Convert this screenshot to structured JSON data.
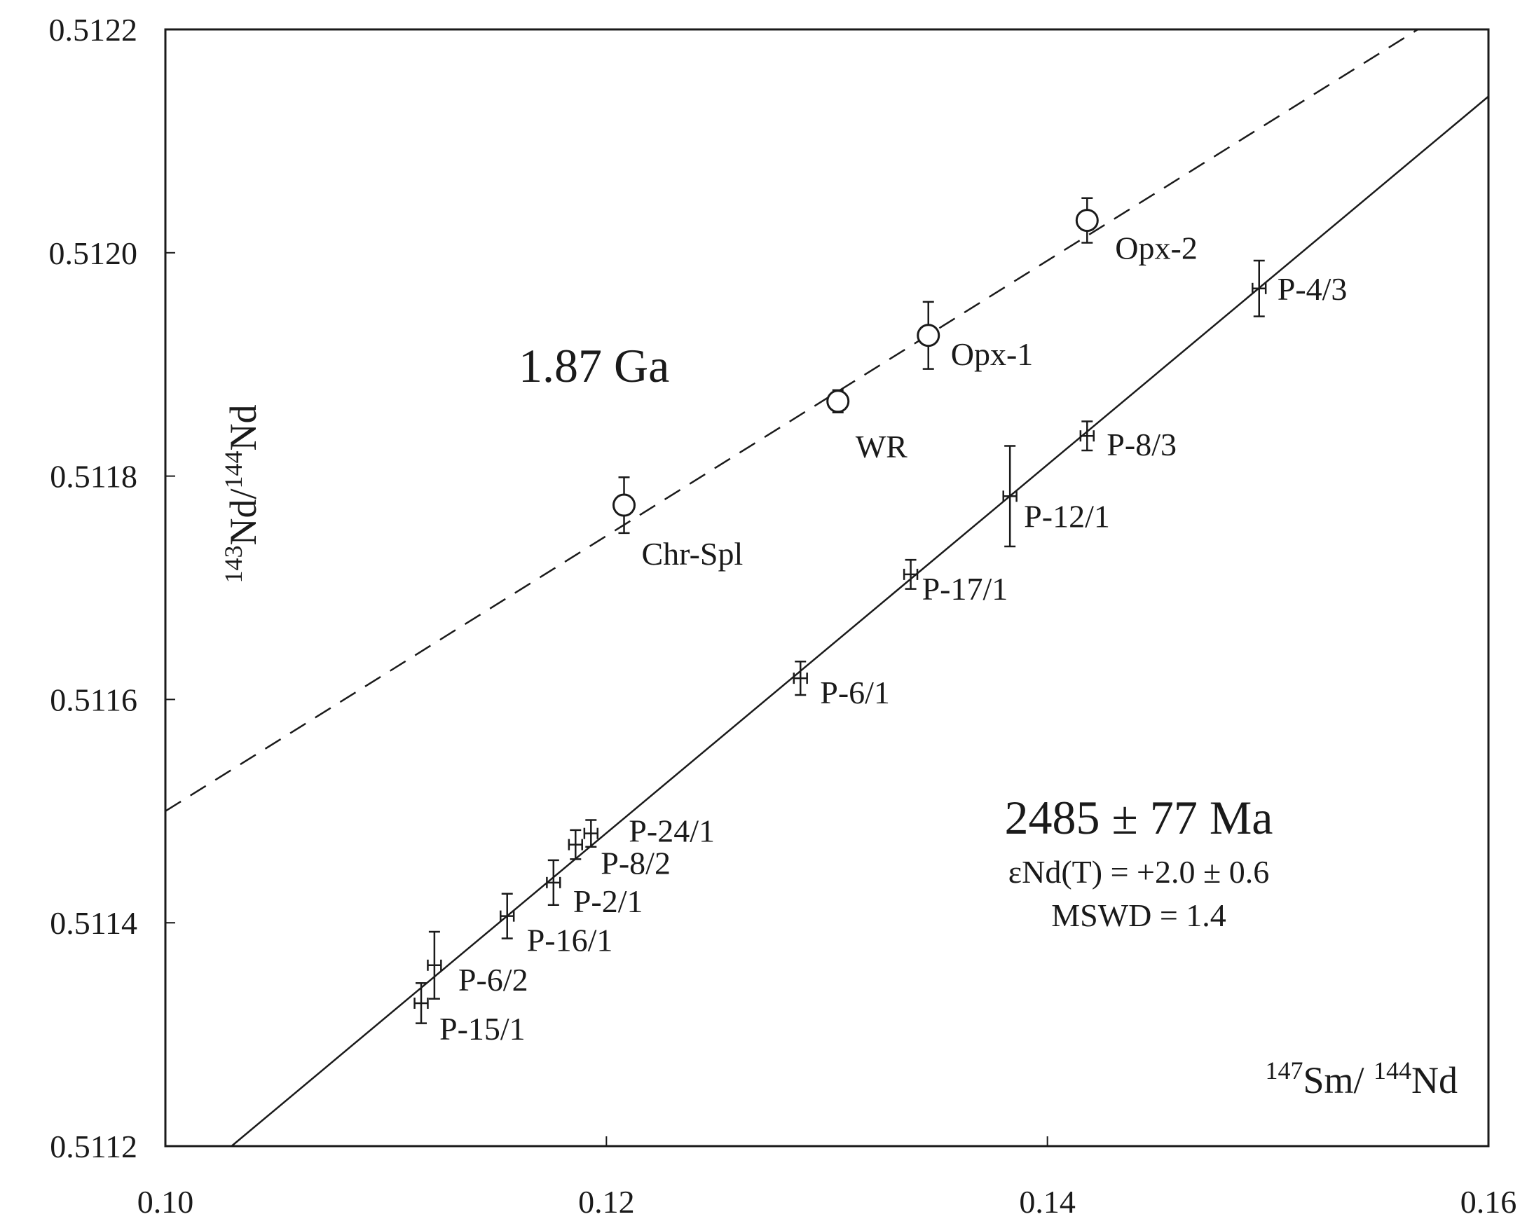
{
  "chart_data": {
    "type": "scatter",
    "title": "",
    "xlabel": {
      "sup1": "147",
      "t1": "Sm/ ",
      "sup2": "144",
      "t2": "Nd"
    },
    "ylabel": {
      "sup1": "143",
      "t1": "Nd/",
      "sup2": "144",
      "t2": "Nd"
    },
    "xlim": [
      0.1,
      0.16
    ],
    "ylim": [
      0.5112,
      0.5122
    ],
    "xticks": [
      "0.10",
      "0.12",
      "0.14",
      "0.16"
    ],
    "yticks": [
      "0.5112",
      "0.5114",
      "0.5116",
      "0.5118",
      "0.5120",
      "0.5122"
    ],
    "grid": false,
    "series": [
      {
        "marker": "open-circle",
        "isochron": {
          "style": "dashed",
          "x": [
            0.1,
            0.1568
          ],
          "y": [
            0.5115,
            0.5122
          ]
        },
        "label": "1.87 Ga",
        "points": [
          {
            "label": "Chr-Spl",
            "x": 0.1208,
            "y": 0.511774,
            "yerr": 2.5e-05,
            "xerr": 0
          },
          {
            "label": "WR",
            "x": 0.1305,
            "y": 0.511867,
            "yerr": 1e-05,
            "xerr": 0
          },
          {
            "label": "Opx-1",
            "x": 0.1346,
            "y": 0.511926,
            "yerr": 3e-05,
            "xerr": 0
          },
          {
            "label": "Opx-2",
            "x": 0.1418,
            "y": 0.512029,
            "yerr": 2e-05,
            "xerr": 0
          }
        ]
      },
      {
        "marker": "cross",
        "isochron": {
          "style": "solid",
          "x": [
            0.103,
            0.16
          ],
          "y": [
            0.5112,
            0.51214
          ]
        },
        "label": "2485 ± 77 Ma",
        "stats": [
          "εNd(T) = +2.0 ± 0.6",
          "MSWD = 1.4"
        ],
        "points": [
          {
            "label": "P-15/1",
            "x": 0.1116,
            "y": 0.511328,
            "yerr": 1.8e-05,
            "xerr": 0.0003
          },
          {
            "label": "P-6/2",
            "x": 0.1122,
            "y": 0.511362,
            "yerr": 3e-05,
            "xerr": 0.0003
          },
          {
            "label": "P-16/1",
            "x": 0.1155,
            "y": 0.511406,
            "yerr": 2e-05,
            "xerr": 0.0003
          },
          {
            "label": "P-2/1",
            "x": 0.1176,
            "y": 0.511436,
            "yerr": 2e-05,
            "xerr": 0.0003
          },
          {
            "label": "P-8/2",
            "x": 0.1186,
            "y": 0.51147,
            "yerr": 1.3e-05,
            "xerr": 0.0003
          },
          {
            "label": "P-24/1",
            "x": 0.1193,
            "y": 0.51148,
            "yerr": 1.2e-05,
            "xerr": 0.0003
          },
          {
            "label": "P-6/1",
            "x": 0.1288,
            "y": 0.511619,
            "yerr": 1.5e-05,
            "xerr": 0.0003
          },
          {
            "label": "P-17/1",
            "x": 0.1338,
            "y": 0.511712,
            "yerr": 1.3e-05,
            "xerr": 0.0003
          },
          {
            "label": "P-12/1",
            "x": 0.1383,
            "y": 0.511782,
            "yerr": 4.5e-05,
            "xerr": 0.0003
          },
          {
            "label": "P-8/3",
            "x": 0.1418,
            "y": 0.511836,
            "yerr": 1.3e-05,
            "xerr": 0.0003
          },
          {
            "label": "P-4/3",
            "x": 0.1496,
            "y": 0.511968,
            "yerr": 2.5e-05,
            "xerr": 0.0003
          }
        ]
      }
    ]
  }
}
